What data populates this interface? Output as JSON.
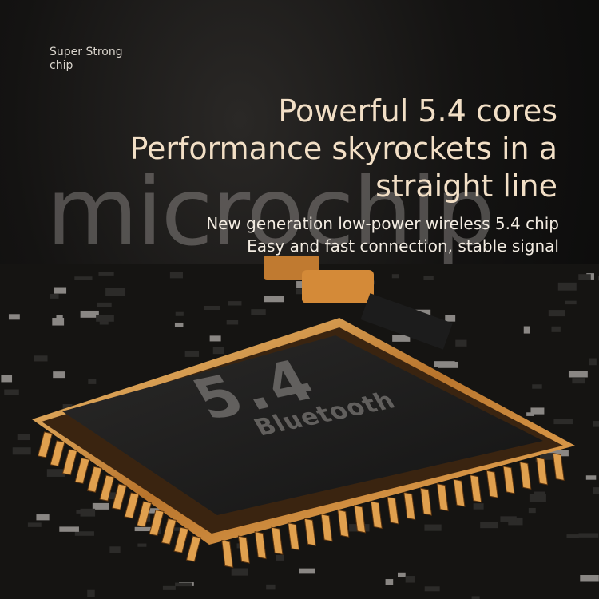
{
  "eyebrow": {
    "line1": "Super Strong",
    "line2": "chip"
  },
  "watermark": "microchip",
  "headline": {
    "line1": "Powerful 5.4 cores",
    "line2": "Performance skyrockets in a",
    "line3": "straight line"
  },
  "subheadline": {
    "line1": "New generation low-power wireless 5.4 chip",
    "line2": "Easy and fast connection, stable signal"
  },
  "chip": {
    "version": "5.4",
    "label": "Bluetooth"
  },
  "colors": {
    "gold": "#c98a3a",
    "headline": "#f2dfc6",
    "background": "#0c0b0a"
  }
}
